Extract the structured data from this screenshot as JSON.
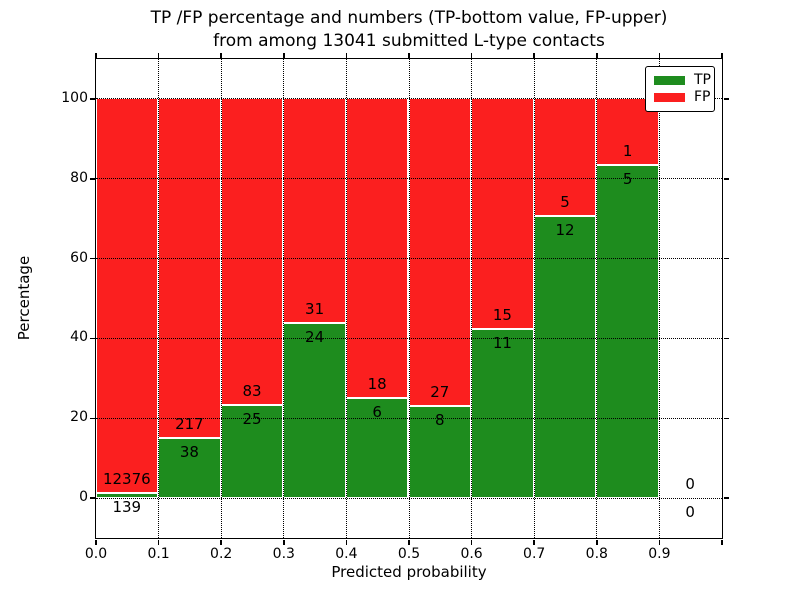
{
  "title": {
    "line1": "TP /FP percentage and numbers (TP-bottom value, FP-upper)",
    "line2": "from among 13041 submitted L-type contacts"
  },
  "axes": {
    "xlabel": "Predicted probability",
    "ylabel": "Percentage",
    "xlim": [
      0.0,
      1.0
    ],
    "ylim": [
      -10,
      110
    ],
    "x_ticks": [
      {
        "value": 0.0,
        "label": "0.0"
      },
      {
        "value": 0.1,
        "label": "0.1"
      },
      {
        "value": 0.2,
        "label": "0.2"
      },
      {
        "value": 0.3,
        "label": "0.3"
      },
      {
        "value": 0.4,
        "label": "0.4"
      },
      {
        "value": 0.5,
        "label": "0.5"
      },
      {
        "value": 0.6,
        "label": "0.6"
      },
      {
        "value": 0.7,
        "label": "0.7"
      },
      {
        "value": 0.8,
        "label": "0.8"
      },
      {
        "value": 0.9,
        "label": "0.9"
      },
      {
        "value": 1.0,
        "label": ""
      }
    ],
    "y_ticks": [
      {
        "value": 0,
        "label": "0"
      },
      {
        "value": 20,
        "label": "20"
      },
      {
        "value": 40,
        "label": "40"
      },
      {
        "value": 60,
        "label": "60"
      },
      {
        "value": 80,
        "label": "80"
      },
      {
        "value": 100,
        "label": "100"
      }
    ],
    "grid_style": "dotted"
  },
  "legend": {
    "position": "upper-right",
    "items": [
      {
        "label": "TP",
        "color": "#1e8c1e"
      },
      {
        "label": "FP",
        "color": "#fb1f1f"
      }
    ]
  },
  "colors": {
    "tp_green": "#1e8c1e",
    "fp_red": "#fb1f1f",
    "bar_edge": "#ffffff",
    "axes_and_text": "#000000",
    "background": "#ffffff"
  },
  "chart_data": {
    "type": "bar",
    "stacked": true,
    "total_submitted": 13041,
    "bin_width": 0.1,
    "bins": [
      {
        "x0": 0.0,
        "x1": 0.1,
        "tp": 139,
        "fp": 12376,
        "tp_percent": 1.11
      },
      {
        "x0": 0.1,
        "x1": 0.2,
        "tp": 38,
        "fp": 217,
        "tp_percent": 14.9
      },
      {
        "x0": 0.2,
        "x1": 0.3,
        "tp": 25,
        "fp": 83,
        "tp_percent": 23.15
      },
      {
        "x0": 0.3,
        "x1": 0.4,
        "tp": 24,
        "fp": 31,
        "tp_percent": 43.64
      },
      {
        "x0": 0.4,
        "x1": 0.5,
        "tp": 6,
        "fp": 18,
        "tp_percent": 25.0
      },
      {
        "x0": 0.5,
        "x1": 0.6,
        "tp": 8,
        "fp": 27,
        "tp_percent": 22.86
      },
      {
        "x0": 0.6,
        "x1": 0.7,
        "tp": 11,
        "fp": 15,
        "tp_percent": 42.31
      },
      {
        "x0": 0.7,
        "x1": 0.8,
        "tp": 12,
        "fp": 5,
        "tp_percent": 70.59
      },
      {
        "x0": 0.8,
        "x1": 0.9,
        "tp": 5,
        "fp": 1,
        "tp_percent": 83.33
      },
      {
        "x0": 0.9,
        "x1": 1.0,
        "tp": 0,
        "fp": 0,
        "tp_percent": 0
      }
    ]
  }
}
